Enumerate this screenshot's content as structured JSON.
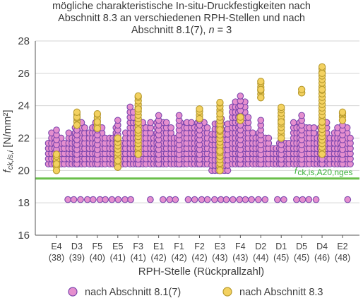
{
  "chart_data": {
    "type": "scatter",
    "title": {
      "line1": "mögliche charakteristische In-situ-Druckfestigkeiten nach",
      "line2": "Abschnitt 8.3 an verschiedenen RPH-Stellen und nach",
      "line3_prefix": "Abschnitt 8.1(7), ",
      "line3_var": "n",
      "line3_suffix": " = 3"
    },
    "ylabel": {
      "base": "f",
      "sub": "ck,is,i",
      "unit": " [N/mm²]"
    },
    "xlabel": "RPH-Stelle (Rückprallzahl)",
    "ylim": [
      16,
      28
    ],
    "yticks": [
      "16",
      "18",
      "20",
      "22",
      "24",
      "26",
      "28"
    ],
    "categories": [
      {
        "name": "E4",
        "rz": "(38)"
      },
      {
        "name": "D3",
        "rz": "(39)"
      },
      {
        "name": "F5",
        "rz": "(40)"
      },
      {
        "name": "E5",
        "rz": "(41)"
      },
      {
        "name": "F3",
        "rz": "(41)"
      },
      {
        "name": "E1",
        "rz": "(42)"
      },
      {
        "name": "F1",
        "rz": "(42)"
      },
      {
        "name": "F2",
        "rz": "(42)"
      },
      {
        "name": "E3",
        "rz": "(43)"
      },
      {
        "name": "F4",
        "rz": "(43)"
      },
      {
        "name": "D2",
        "rz": "(44)"
      },
      {
        "name": "D1",
        "rz": "(45)"
      },
      {
        "name": "D5",
        "rz": "(45)"
      },
      {
        "name": "D4",
        "rz": "(46)"
      },
      {
        "name": "E2",
        "rz": "(48)"
      }
    ],
    "reference_line": {
      "value": 19.5,
      "label_base": "f",
      "label_sub": "ck,is,A20,nges",
      "color": "#6abf4b"
    },
    "series": [
      {
        "name": "nach Abschnitt 8.1(7)",
        "color": "#7a45ad",
        "fill": "#e58fce"
      },
      {
        "name": "nach Abschnitt 8.3",
        "color": "#b79a2e",
        "fill": "#f3d160"
      }
    ],
    "series_ranges": [
      {
        "purple_min": 20.4,
        "purple_max": 22.4,
        "gold": [
          20.0,
          21.0,
          20.4
        ]
      },
      {
        "purple_min": 20.4,
        "purple_max": 23.2,
        "gold": [
          22.8,
          23.3,
          23.6
        ]
      },
      {
        "purple_min": 20.4,
        "purple_max": 23.2,
        "gold": [
          22.6,
          23.0,
          23.5
        ]
      },
      {
        "purple_min": 20.4,
        "purple_max": 22.8,
        "gold": [
          20.2,
          20.6,
          22.0
        ]
      },
      {
        "purple_min": 20.4,
        "purple_max": 24.0,
        "gold": [
          21.0,
          22.5,
          23.8,
          24.6
        ]
      },
      {
        "purple_min": 20.4,
        "purple_max": 23.3,
        "gold": []
      },
      {
        "purple_min": 20.4,
        "purple_max": 23.3,
        "gold": []
      },
      {
        "purple_min": 20.4,
        "purple_max": 23.3,
        "gold": [
          23.2,
          23.8
        ]
      },
      {
        "purple_min": 20.0,
        "purple_max": 23.3,
        "gold": [
          20.0,
          21.2,
          22.5,
          23.5,
          24.2
        ]
      },
      {
        "purple_min": 20.4,
        "purple_max": 24.5,
        "gold": [
          23.1,
          23.3
        ]
      },
      {
        "purple_min": 20.4,
        "purple_max": 23.0,
        "gold": [
          24.5,
          25.0,
          25.5
        ]
      },
      {
        "purple_min": 20.4,
        "purple_max": 21.8,
        "gold": [
          22.0,
          23.0,
          23.9
        ]
      },
      {
        "purple_min": 20.4,
        "purple_max": 23.3,
        "gold": [
          24.8,
          25.0
        ]
      },
      {
        "purple_min": 20.4,
        "purple_max": 23.3,
        "gold": [
          21.0,
          23.0,
          25.0,
          26.0,
          26.4
        ]
      },
      {
        "purple_min": 20.4,
        "purple_max": 23.3,
        "gold": [
          23.1,
          23.6
        ]
      }
    ],
    "low_cluster": 18.2,
    "grid": true,
    "legend_position": "bottom"
  }
}
